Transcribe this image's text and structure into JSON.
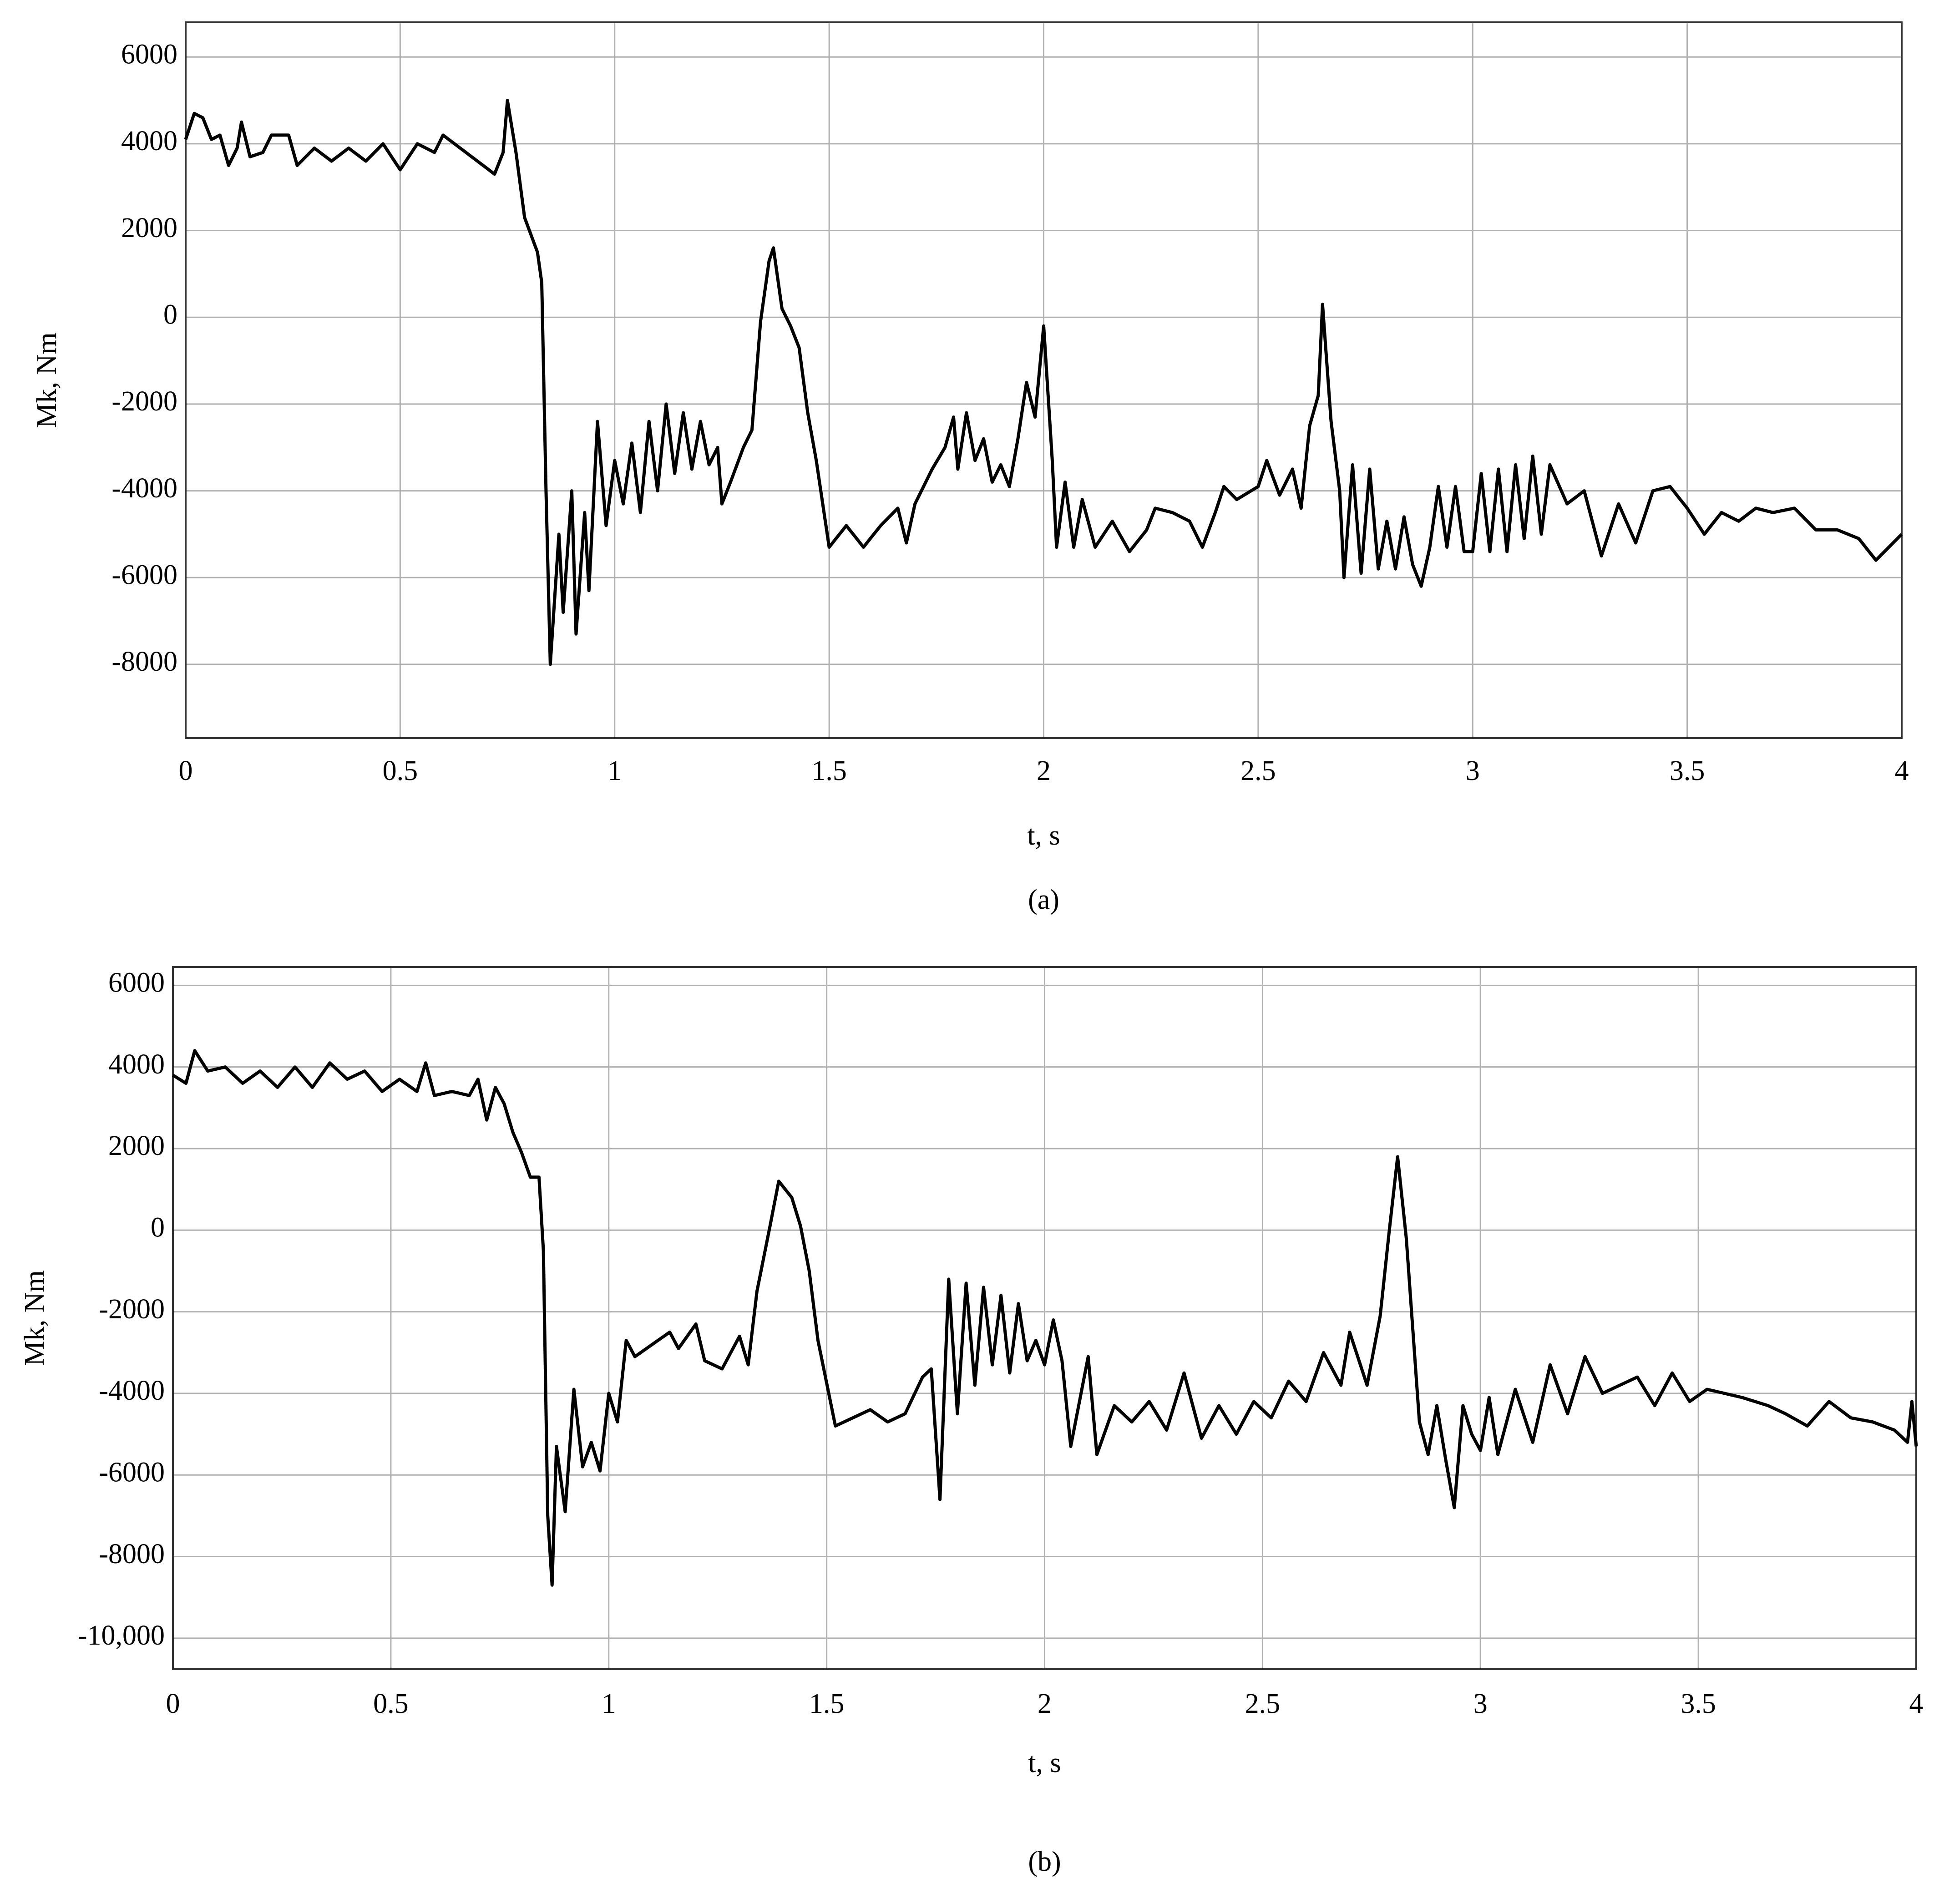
{
  "chart_data": [
    {
      "type": "line",
      "caption": "(a)",
      "xlabel": "t, s",
      "ylabel": "Mk, Nm",
      "color": "#000000",
      "grid": true,
      "xlim": [
        0,
        4
      ],
      "ylim": [
        -9700,
        6800
      ],
      "xticks": [
        0,
        0.5,
        1,
        1.5,
        2,
        2.5,
        3,
        3.5,
        4
      ],
      "yticks": [
        -8000,
        -6000,
        -4000,
        -2000,
        0,
        2000,
        4000,
        6000
      ],
      "x": [
        0,
        0.02,
        0.04,
        0.06,
        0.08,
        0.1,
        0.12,
        0.13,
        0.15,
        0.18,
        0.2,
        0.24,
        0.26,
        0.3,
        0.34,
        0.38,
        0.42,
        0.46,
        0.5,
        0.54,
        0.58,
        0.6,
        0.64,
        0.68,
        0.72,
        0.74,
        0.75,
        0.77,
        0.79,
        0.82,
        0.83,
        0.84,
        0.85,
        0.87,
        0.88,
        0.9,
        0.91,
        0.93,
        0.94,
        0.96,
        0.98,
        1.0,
        1.02,
        1.04,
        1.06,
        1.08,
        1.1,
        1.12,
        1.14,
        1.16,
        1.18,
        1.2,
        1.22,
        1.24,
        1.25,
        1.27,
        1.3,
        1.32,
        1.34,
        1.36,
        1.37,
        1.39,
        1.41,
        1.43,
        1.45,
        1.47,
        1.5,
        1.54,
        1.58,
        1.62,
        1.66,
        1.68,
        1.7,
        1.74,
        1.77,
        1.79,
        1.8,
        1.82,
        1.84,
        1.86,
        1.88,
        1.9,
        1.92,
        1.94,
        1.96,
        1.98,
        2.0,
        2.02,
        2.03,
        2.05,
        2.07,
        2.09,
        2.12,
        2.16,
        2.2,
        2.24,
        2.26,
        2.3,
        2.34,
        2.37,
        2.4,
        2.42,
        2.45,
        2.5,
        2.52,
        2.55,
        2.58,
        2.6,
        2.62,
        2.64,
        2.65,
        2.67,
        2.69,
        2.7,
        2.72,
        2.74,
        2.76,
        2.78,
        2.8,
        2.82,
        2.84,
        2.86,
        2.88,
        2.9,
        2.92,
        2.94,
        2.96,
        2.98,
        3.0,
        3.02,
        3.04,
        3.06,
        3.08,
        3.1,
        3.12,
        3.14,
        3.16,
        3.18,
        3.22,
        3.26,
        3.3,
        3.34,
        3.38,
        3.42,
        3.46,
        3.5,
        3.54,
        3.58,
        3.62,
        3.66,
        3.7,
        3.75,
        3.8,
        3.85,
        3.9,
        3.94,
        3.97,
        4.0
      ],
      "values": [
        4100,
        4700,
        4600,
        4100,
        4200,
        3500,
        3900,
        4500,
        3700,
        3800,
        4200,
        4200,
        3500,
        3900,
        3600,
        3900,
        3600,
        4000,
        3400,
        4000,
        3800,
        4200,
        3900,
        3600,
        3300,
        3800,
        5000,
        3800,
        2300,
        1500,
        800,
        -4000,
        -8000,
        -5000,
        -6800,
        -4000,
        -7300,
        -4500,
        -6300,
        -2400,
        -4800,
        -3300,
        -4300,
        -2900,
        -4500,
        -2400,
        -4000,
        -2000,
        -3600,
        -2200,
        -3500,
        -2400,
        -3400,
        -3000,
        -4300,
        -3800,
        -3000,
        -2600,
        -100,
        1300,
        1600,
        200,
        -200,
        -700,
        -2200,
        -3300,
        -5300,
        -4800,
        -5300,
        -4800,
        -4400,
        -5200,
        -4300,
        -3500,
        -3000,
        -2300,
        -3500,
        -2200,
        -3300,
        -2800,
        -3800,
        -3400,
        -3900,
        -2800,
        -1500,
        -2300,
        -200,
        -3300,
        -5300,
        -3800,
        -5300,
        -4200,
        -5300,
        -4700,
        -5400,
        -4900,
        -4400,
        -4500,
        -4700,
        -5300,
        -4500,
        -3900,
        -4200,
        -3900,
        -3300,
        -4100,
        -3500,
        -4400,
        -2500,
        -1800,
        300,
        -2400,
        -4000,
        -6000,
        -3400,
        -5900,
        -3500,
        -5800,
        -4700,
        -5800,
        -4600,
        -5700,
        -6200,
        -5300,
        -3900,
        -5300,
        -3900,
        -5400,
        -5400,
        -3600,
        -5400,
        -3500,
        -5400,
        -3400,
        -5100,
        -3200,
        -5000,
        -3400,
        -4300,
        -4000,
        -5500,
        -4300,
        -5200,
        -4000,
        -3900,
        -4400,
        -5000,
        -4500,
        -4700,
        -4400,
        -4500,
        -4400,
        -4900,
        -4900,
        -5100,
        -5600,
        -5300,
        -5000
      ]
    },
    {
      "type": "line",
      "caption": "(b)",
      "xlabel": "t, s",
      "ylabel": "Mk, Nm",
      "color": "#000000",
      "grid": true,
      "xlim": [
        0,
        4
      ],
      "ylim": [
        -10760,
        6450
      ],
      "xticks": [
        0,
        0.5,
        1,
        1.5,
        2,
        2.5,
        3,
        3.5,
        4
      ],
      "yticks": [
        {
          "value": -10000,
          "label": "-10,000"
        },
        -8000,
        -6000,
        -4000,
        -2000,
        0,
        2000,
        4000,
        6000
      ],
      "x": [
        0,
        0.03,
        0.05,
        0.08,
        0.12,
        0.16,
        0.2,
        0.24,
        0.28,
        0.32,
        0.36,
        0.4,
        0.44,
        0.48,
        0.52,
        0.56,
        0.58,
        0.6,
        0.64,
        0.68,
        0.7,
        0.72,
        0.74,
        0.76,
        0.78,
        0.8,
        0.82,
        0.84,
        0.85,
        0.86,
        0.87,
        0.88,
        0.9,
        0.92,
        0.94,
        0.96,
        0.98,
        1.0,
        1.02,
        1.04,
        1.06,
        1.1,
        1.14,
        1.16,
        1.2,
        1.22,
        1.26,
        1.3,
        1.32,
        1.34,
        1.37,
        1.39,
        1.42,
        1.44,
        1.46,
        1.48,
        1.52,
        1.56,
        1.6,
        1.64,
        1.68,
        1.72,
        1.74,
        1.76,
        1.78,
        1.8,
        1.82,
        1.84,
        1.86,
        1.88,
        1.9,
        1.92,
        1.94,
        1.96,
        1.98,
        2.0,
        2.02,
        2.04,
        2.06,
        2.1,
        2.12,
        2.16,
        2.2,
        2.24,
        2.28,
        2.32,
        2.36,
        2.4,
        2.44,
        2.48,
        2.52,
        2.56,
        2.6,
        2.64,
        2.68,
        2.7,
        2.74,
        2.77,
        2.79,
        2.81,
        2.83,
        2.86,
        2.88,
        2.9,
        2.92,
        2.94,
        2.96,
        2.98,
        3.0,
        3.02,
        3.04,
        3.08,
        3.12,
        3.16,
        3.2,
        3.24,
        3.28,
        3.32,
        3.36,
        3.4,
        3.44,
        3.48,
        3.52,
        3.56,
        3.6,
        3.66,
        3.7,
        3.75,
        3.8,
        3.85,
        3.9,
        3.95,
        3.98,
        3.99,
        4.0
      ],
      "values": [
        3800,
        3600,
        4400,
        3900,
        4000,
        3600,
        3900,
        3500,
        4000,
        3500,
        4100,
        3700,
        3900,
        3400,
        3700,
        3400,
        4100,
        3300,
        3400,
        3300,
        3700,
        2700,
        3500,
        3100,
        2400,
        1900,
        1300,
        1300,
        -500,
        -7000,
        -8700,
        -5300,
        -6900,
        -3900,
        -5800,
        -5200,
        -5900,
        -4000,
        -4700,
        -2700,
        -3100,
        -2800,
        -2500,
        -2900,
        -2300,
        -3200,
        -3400,
        -2600,
        -3300,
        -1500,
        100,
        1200,
        800,
        100,
        -1000,
        -2700,
        -4800,
        -4600,
        -4400,
        -4700,
        -4500,
        -3600,
        -3400,
        -6600,
        -1200,
        -4500,
        -1300,
        -3800,
        -1400,
        -3300,
        -1600,
        -3500,
        -1800,
        -3200,
        -2700,
        -3300,
        -2200,
        -3200,
        -5300,
        -3100,
        -5500,
        -4300,
        -4700,
        -4200,
        -4900,
        -3500,
        -5100,
        -4300,
        -5000,
        -4200,
        -4600,
        -3700,
        -4200,
        -3000,
        -3800,
        -2500,
        -3800,
        -2100,
        -100,
        1800,
        -200,
        -4700,
        -5500,
        -4300,
        -5600,
        -6800,
        -4300,
        -5000,
        -5400,
        -4100,
        -5500,
        -3900,
        -5200,
        -3300,
        -4500,
        -3100,
        -4000,
        -3800,
        -3600,
        -4300,
        -3500,
        -4200,
        -3900,
        -4000,
        -4100,
        -4300,
        -4500,
        -4800,
        -4200,
        -4600,
        -4700,
        -4900,
        -5200,
        -4200,
        -5300
      ]
    }
  ]
}
